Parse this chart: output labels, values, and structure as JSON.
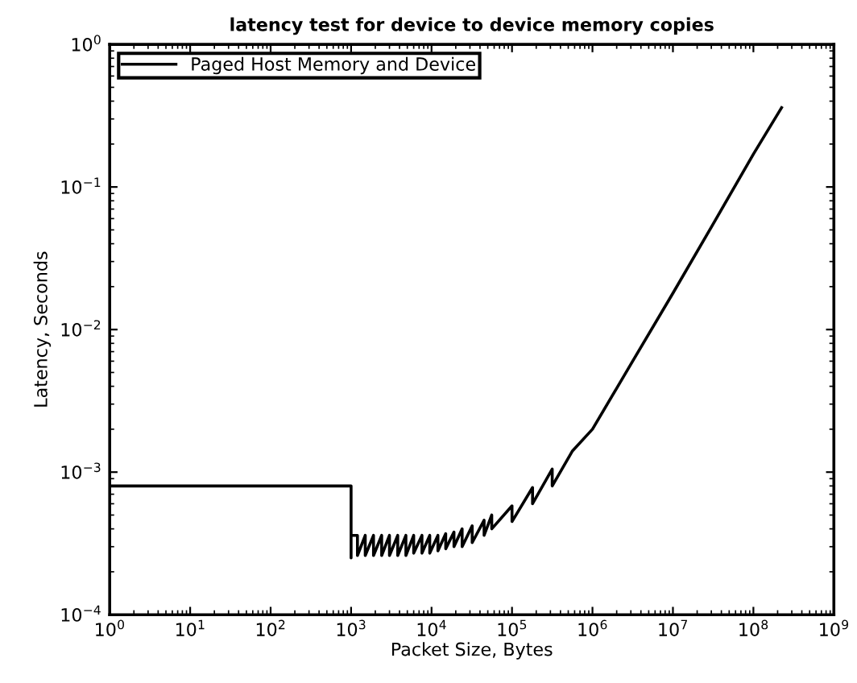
{
  "chart_data": {
    "type": "line",
    "title": "latency test for device to device memory copies",
    "xlabel": "Packet Size, Bytes",
    "ylabel": "Latency, Seconds",
    "log": "xy",
    "grid": false,
    "legend": "top left",
    "marker": "none",
    "line_style": "solid",
    "xlim": [
      1,
      1000000000
    ],
    "ylim": [
      0.0001,
      1
    ],
    "xticks": [
      {
        "value": 1,
        "label": "10$^{0}$"
      },
      {
        "value": 10,
        "label": "10$^{1}$"
      },
      {
        "value": 100,
        "label": "10$^{2}$"
      },
      {
        "value": 1000,
        "label": "10$^{3}$"
      },
      {
        "value": 10000,
        "label": "10$^{4}$"
      },
      {
        "value": 100000,
        "label": "10$^{5}$"
      },
      {
        "value": 1000000,
        "label": "10$^{6}$"
      },
      {
        "value": 10000000,
        "label": "10$^{7}$"
      },
      {
        "value": 100000000,
        "label": "10$^{8}$"
      },
      {
        "value": 1000000000,
        "label": "10$^{9}$"
      }
    ],
    "yticks": [
      {
        "value": 0.0001,
        "label": "10$^{−4}$"
      },
      {
        "value": 0.001,
        "label": "10$^{−3}$"
      },
      {
        "value": 0.01,
        "label": "10$^{−2}$"
      },
      {
        "value": 0.1,
        "label": "10$^{−1}$"
      },
      {
        "value": 1,
        "label": "10$^{0}$"
      }
    ],
    "series": [
      {
        "name": "Paged Host Memory and Device",
        "color": "#000000",
        "x": [
          1,
          1,
          10,
          100,
          1000,
          1000,
          1000,
          1200,
          1200,
          1500,
          1500,
          1900,
          1900,
          2400,
          2400,
          3000,
          3000,
          3800,
          3800,
          4800,
          4800,
          6000,
          6000,
          7600,
          7600,
          9500,
          9500,
          12000,
          12000,
          15000,
          15000,
          19000,
          19000,
          24000,
          24000,
          32000,
          32000,
          45000,
          45000,
          56000,
          56000,
          100000,
          100000,
          180000,
          180000,
          316000,
          316000,
          560000,
          1000000,
          3160000,
          10000000,
          31600000,
          100000000,
          224000000
        ],
        "values": [
          0.0001,
          0.0008,
          0.0008,
          0.0008,
          0.0008,
          0.00025,
          0.00036,
          0.00036,
          0.00026,
          0.00036,
          0.00026,
          0.00036,
          0.00026,
          0.00036,
          0.00026,
          0.00036,
          0.00026,
          0.00036,
          0.00026,
          0.00036,
          0.00026,
          0.00036,
          0.00027,
          0.00036,
          0.00027,
          0.00036,
          0.00027,
          0.00036,
          0.00028,
          0.00037,
          0.00029,
          0.00038,
          0.0003,
          0.0004,
          0.0003,
          0.00042,
          0.00032,
          0.00046,
          0.00036,
          0.0005,
          0.0004,
          0.00058,
          0.00045,
          0.00078,
          0.0006,
          0.00105,
          0.0008,
          0.0014,
          0.002,
          0.006,
          0.018,
          0.055,
          0.17,
          0.36
        ]
      }
    ]
  }
}
